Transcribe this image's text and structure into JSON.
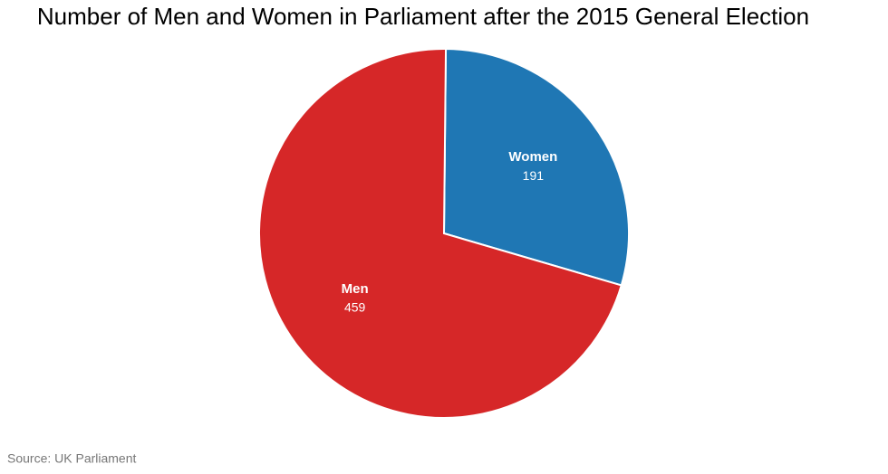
{
  "chart_data": {
    "type": "pie",
    "title": "Number of Men and Women in Parliament after the 2015 General Election",
    "source": "Source: UK Parliament",
    "categories": [
      "Women",
      "Men"
    ],
    "values": [
      191,
      459
    ],
    "colors": [
      "#1f77b4",
      "#d62728"
    ]
  }
}
